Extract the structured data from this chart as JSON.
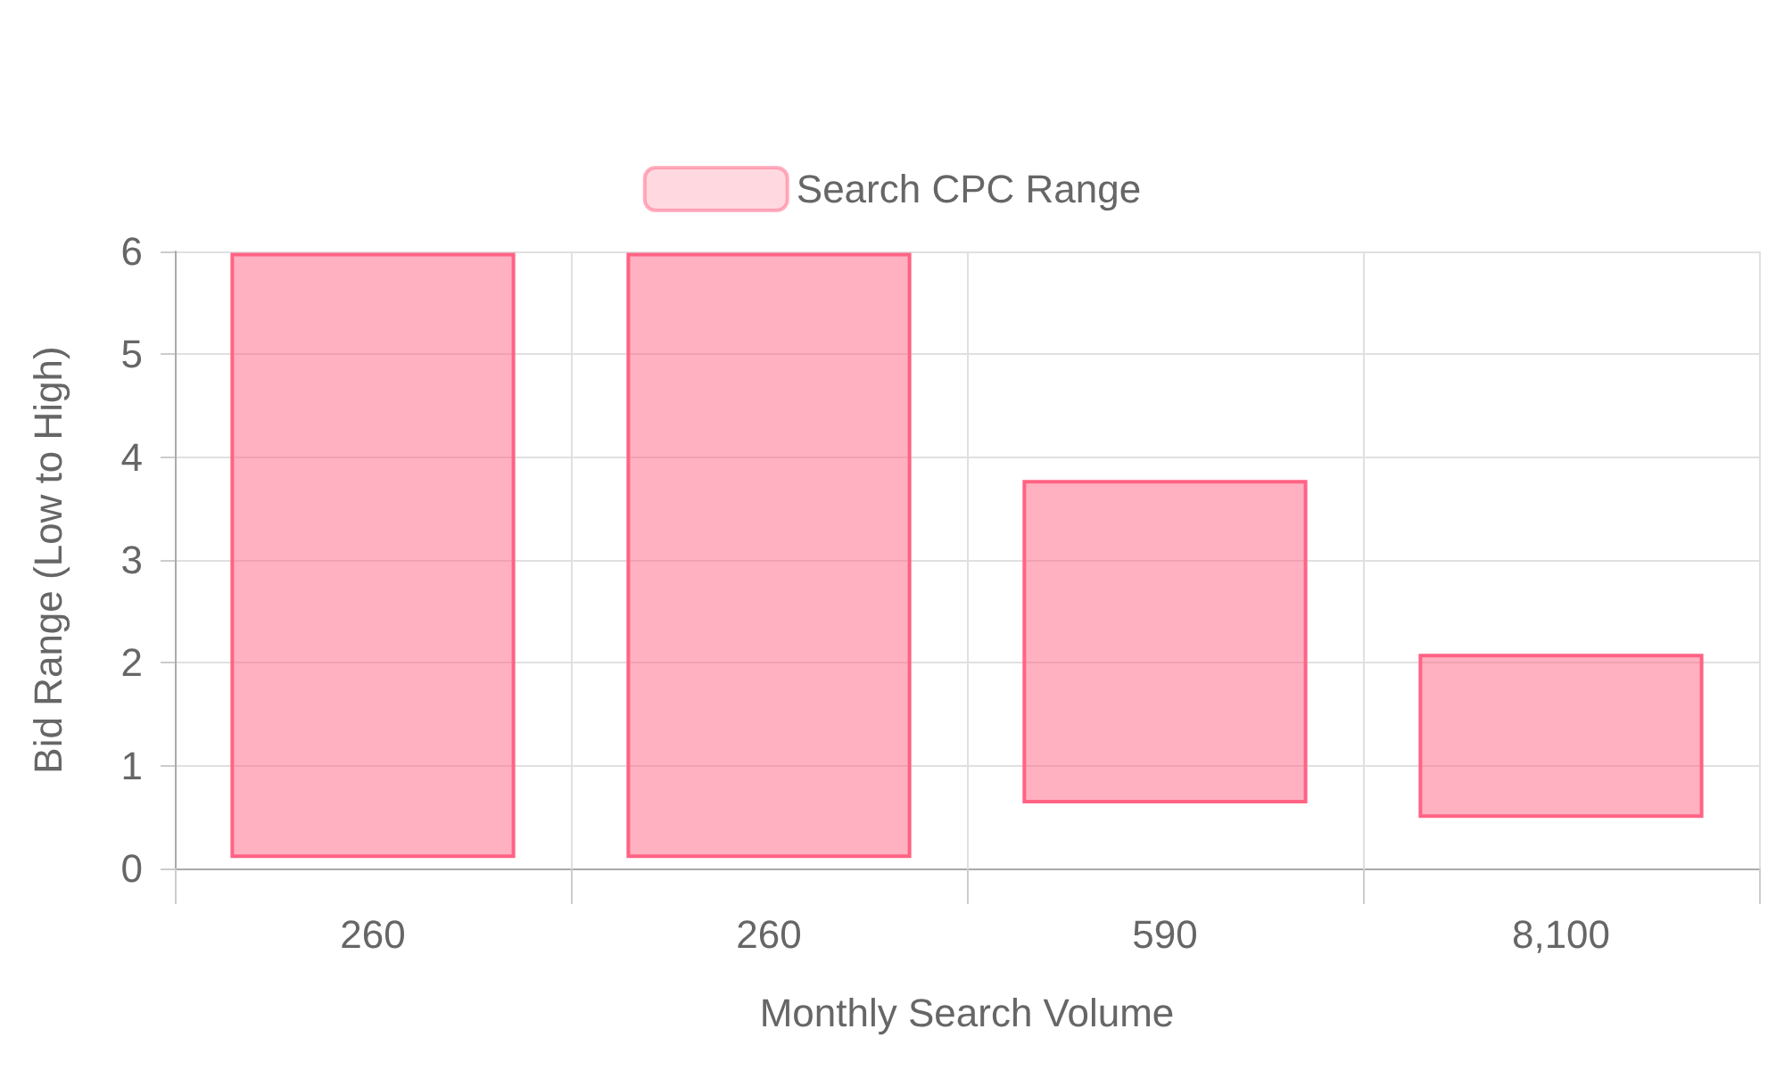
{
  "chart_data": {
    "type": "bar",
    "xlabel": "Monthly Search Volume",
    "ylabel": "Bid Range (Low to High)",
    "categories": [
      "260",
      "260",
      "590",
      "8,100"
    ],
    "series": [
      {
        "name": "Search CPC Range",
        "color": "#ff6384",
        "values": [
          5.85,
          5.85,
          3.11,
          1.56
        ],
        "base": [
          0.12,
          0.12,
          0.65,
          0.51
        ]
      }
    ],
    "ylim": [
      0,
      6
    ],
    "yticks": [
      0,
      1,
      2,
      3,
      4,
      5,
      6
    ],
    "grid": true,
    "legend": "top"
  }
}
